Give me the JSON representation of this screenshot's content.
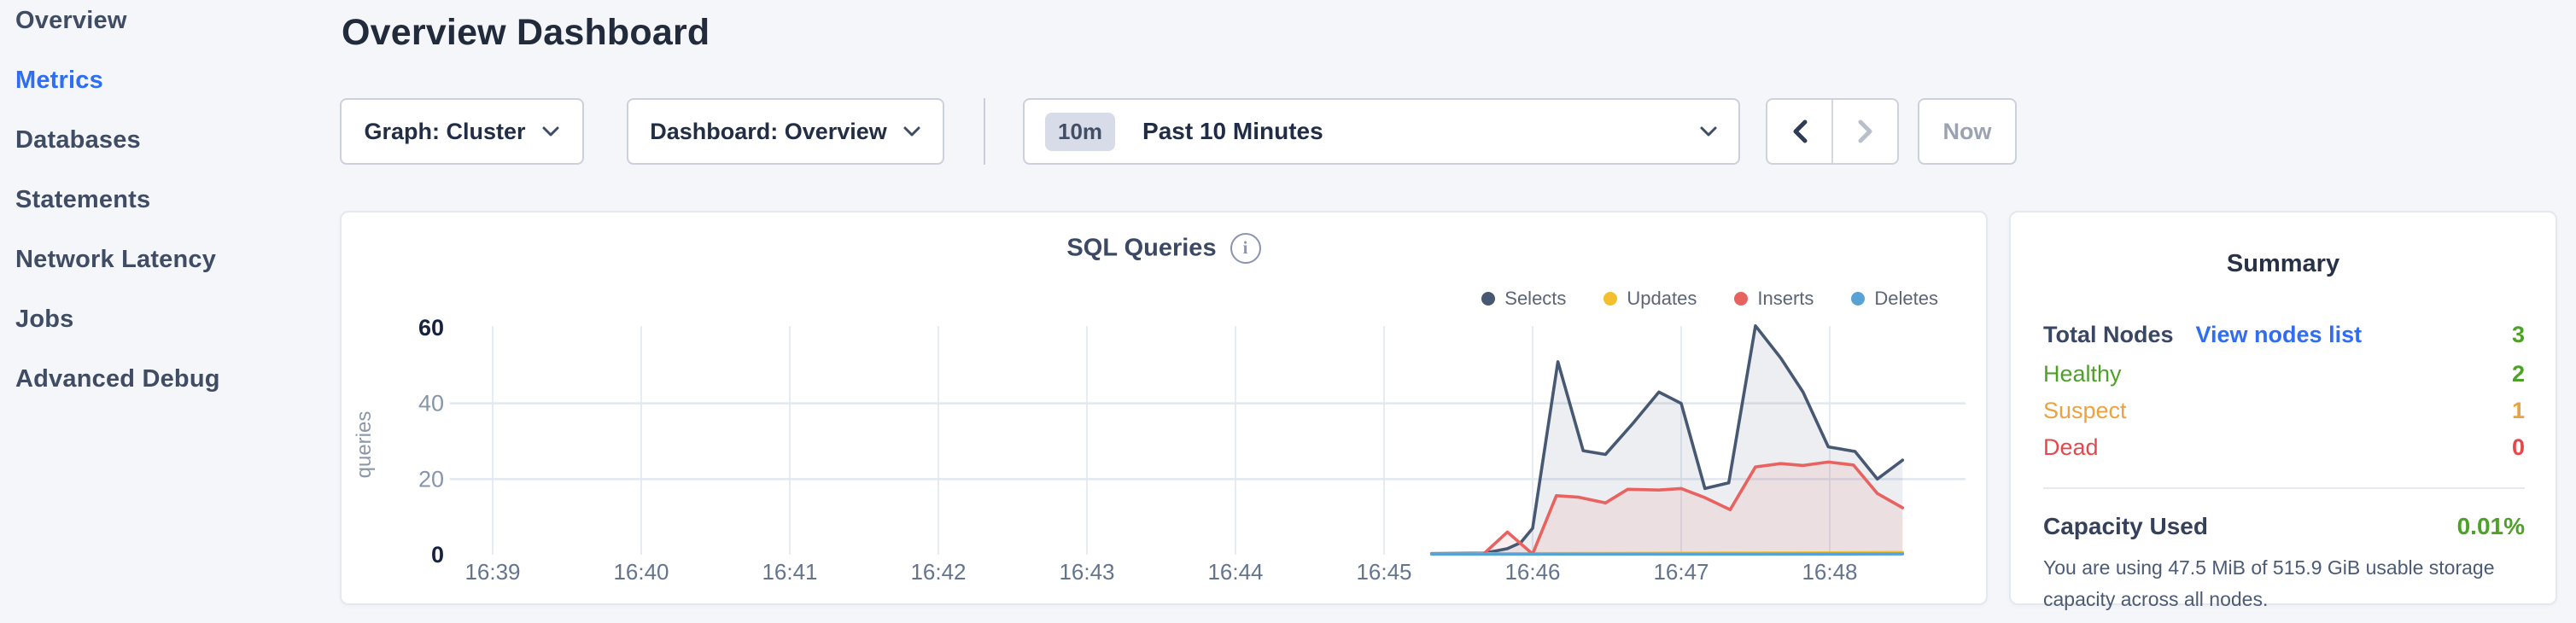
{
  "sidebar": {
    "items": [
      {
        "label": "Overview",
        "active": false
      },
      {
        "label": "Metrics",
        "active": true
      },
      {
        "label": "Databases",
        "active": false
      },
      {
        "label": "Statements",
        "active": false
      },
      {
        "label": "Network Latency",
        "active": false
      },
      {
        "label": "Jobs",
        "active": false
      },
      {
        "label": "Advanced Debug",
        "active": false
      }
    ]
  },
  "header": {
    "title": "Overview Dashboard"
  },
  "toolbar": {
    "graph_dropdown_label": "Graph: Cluster",
    "dashboard_dropdown_label": "Dashboard: Overview",
    "time_window": {
      "badge": "10m",
      "label": "Past 10 Minutes"
    },
    "now_button_label": "Now"
  },
  "chart_card": {
    "title": "SQL Queries"
  },
  "chart_data": {
    "type": "area",
    "title": "SQL Queries",
    "ylabel": "queries",
    "ylim": [
      0,
      60
    ],
    "y_ticks": [
      0,
      20,
      40,
      60
    ],
    "y_gridlines": [
      20,
      40
    ],
    "y_emphasized": [
      0,
      60
    ],
    "x_unit": "minutes after 16:00",
    "x_domain": [
      38.78,
      48.62
    ],
    "x_ticks": [
      {
        "t": 39,
        "label": "16:39"
      },
      {
        "t": 40,
        "label": "16:40"
      },
      {
        "t": 41,
        "label": "16:41"
      },
      {
        "t": 42,
        "label": "16:42"
      },
      {
        "t": 43,
        "label": "16:43"
      },
      {
        "t": 44,
        "label": "16:44"
      },
      {
        "t": 45,
        "label": "16:45"
      },
      {
        "t": 46,
        "label": "16:46"
      },
      {
        "t": 47,
        "label": "16:47"
      },
      {
        "t": 48,
        "label": "16:48"
      }
    ],
    "legend_position": "top-right",
    "series": [
      {
        "name": "Selects",
        "color": "#475872",
        "fill": "rgba(71,88,114,0.10)",
        "points": [
          [
            45.32,
            0.3
          ],
          [
            45.67,
            0.4
          ],
          [
            45.75,
            1
          ],
          [
            45.83,
            1.6
          ],
          [
            45.92,
            3.2
          ],
          [
            46.0,
            7
          ],
          [
            46.17,
            51
          ],
          [
            46.34,
            27.5
          ],
          [
            46.49,
            26.5
          ],
          [
            46.67,
            34.5
          ],
          [
            46.85,
            43
          ],
          [
            47.0,
            40
          ],
          [
            47.16,
            17.5
          ],
          [
            47.32,
            19
          ],
          [
            47.5,
            60.5
          ],
          [
            47.67,
            52
          ],
          [
            47.82,
            43
          ],
          [
            47.99,
            28.5
          ],
          [
            48.17,
            27.3
          ],
          [
            48.32,
            20
          ],
          [
            48.49,
            25
          ]
        ]
      },
      {
        "name": "Updates",
        "color": "#f2c02e",
        "fill": "rgba(242,192,46,0.15)",
        "points": [
          [
            45.32,
            0.2
          ],
          [
            46.0,
            0.3
          ],
          [
            47.0,
            0.4
          ],
          [
            47.99,
            0.5
          ],
          [
            48.49,
            0.6
          ]
        ]
      },
      {
        "name": "Inserts",
        "color": "#e8625f",
        "fill": "rgba(232,98,95,0.10)",
        "points": [
          [
            45.67,
            0.2
          ],
          [
            45.83,
            6
          ],
          [
            46.0,
            0.2
          ],
          [
            46.16,
            15.6
          ],
          [
            46.31,
            15.2
          ],
          [
            46.49,
            13.7
          ],
          [
            46.64,
            17.3
          ],
          [
            46.85,
            17.1
          ],
          [
            47.0,
            17.5
          ],
          [
            47.16,
            15.1
          ],
          [
            47.33,
            11.9
          ],
          [
            47.5,
            23.2
          ],
          [
            47.67,
            24.1
          ],
          [
            47.82,
            23.6
          ],
          [
            47.99,
            24.5
          ],
          [
            48.16,
            23.7
          ],
          [
            48.32,
            16.2
          ],
          [
            48.49,
            12.4
          ]
        ]
      },
      {
        "name": "Deletes",
        "color": "#58a3d6",
        "fill": "rgba(88,163,214,0.12)",
        "points": [
          [
            45.32,
            0.15
          ],
          [
            46.5,
            0.15
          ],
          [
            47.5,
            0.15
          ],
          [
            48.49,
            0.2
          ]
        ]
      }
    ]
  },
  "summary": {
    "title": "Summary",
    "total_nodes_label": "Total Nodes",
    "view_nodes_link": "View nodes list",
    "total_nodes_value": "3",
    "healthy_label": "Healthy",
    "healthy_value": "2",
    "suspect_label": "Suspect",
    "suspect_value": "1",
    "dead_label": "Dead",
    "dead_value": "0",
    "capacity_label": "Capacity Used",
    "capacity_value": "0.01%",
    "capacity_description": "You are using 47.5 MiB of 515.9 GiB usable storage capacity across all nodes."
  }
}
